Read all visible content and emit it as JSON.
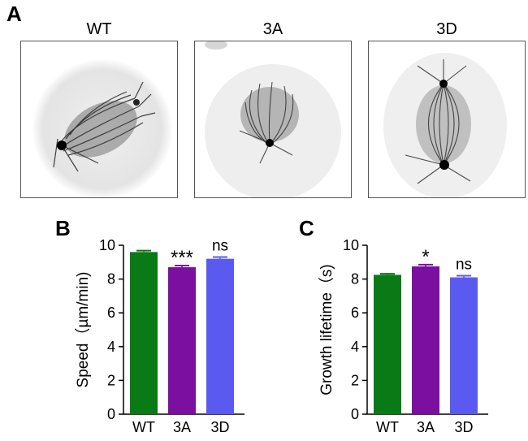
{
  "panels": {
    "a": {
      "letter": "A",
      "images": [
        {
          "label": "WT",
          "description_icon": "spindle-microscopy-image"
        },
        {
          "label": "3A",
          "description_icon": "spindle-microscopy-image"
        },
        {
          "label": "3D",
          "description_icon": "spindle-microscopy-image"
        }
      ]
    },
    "b": {
      "letter": "B"
    },
    "c": {
      "letter": "C"
    }
  },
  "colors": {
    "WT": "#0a7a16",
    "3A": "#7a0fa0",
    "3D": "#5a5af0"
  },
  "chart_data": [
    {
      "type": "bar",
      "panel": "B",
      "categories": [
        "WT",
        "3A",
        "3D"
      ],
      "values": [
        9.6,
        8.7,
        9.2
      ],
      "errors": [
        0.08,
        0.1,
        0.1
      ],
      "annotations": [
        "",
        "***",
        "ns"
      ],
      "ylabel": "Speed（µm/min)",
      "xlabel": "",
      "ylim": [
        0,
        10
      ],
      "yticks": [
        0,
        2,
        4,
        6,
        8,
        10
      ],
      "grid": false
    },
    {
      "type": "bar",
      "panel": "C",
      "categories": [
        "WT",
        "3A",
        "3D"
      ],
      "values": [
        8.25,
        8.75,
        8.1
      ],
      "errors": [
        0.06,
        0.1,
        0.1
      ],
      "annotations": [
        "",
        "*",
        "ns"
      ],
      "ylabel": "Growth lifetime（s)",
      "xlabel": "",
      "ylim": [
        0,
        10
      ],
      "yticks": [
        0,
        2,
        4,
        6,
        8,
        10
      ],
      "grid": false
    }
  ]
}
